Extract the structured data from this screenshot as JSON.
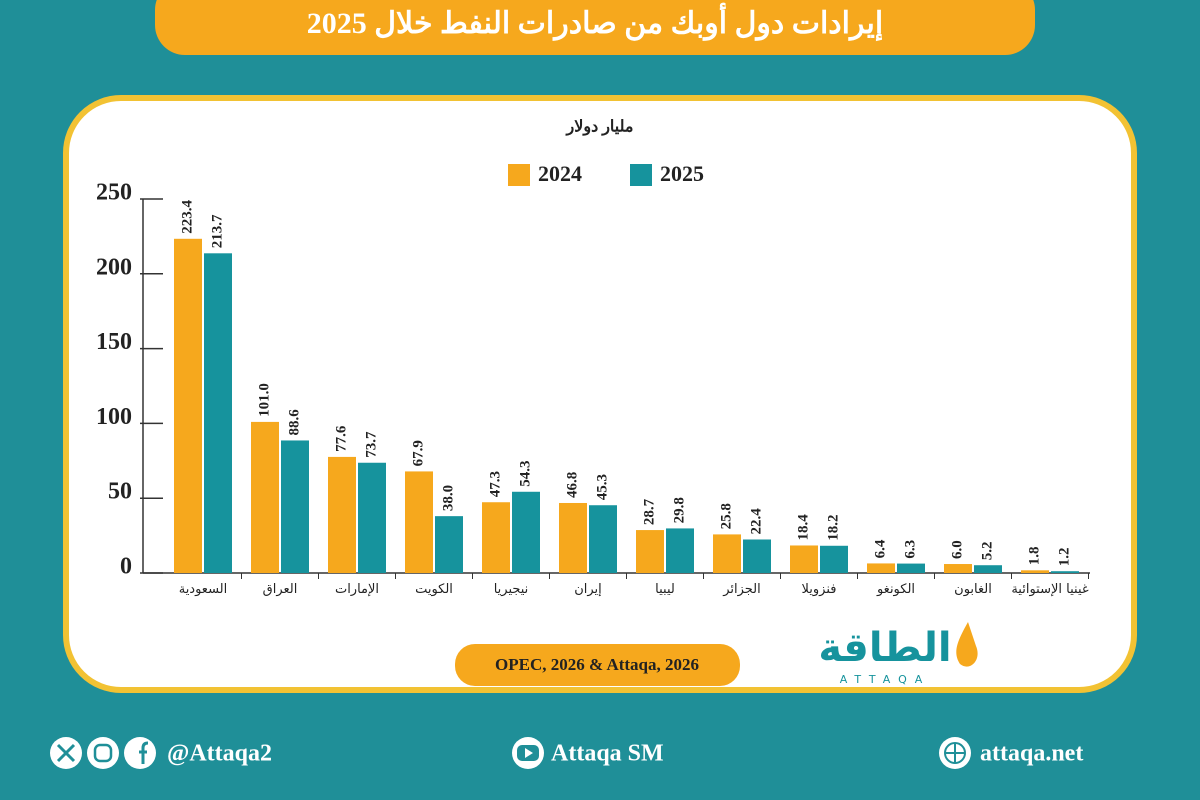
{
  "header": {
    "title": "إيرادات دول أوبك من صادرات النفط خلال 2025"
  },
  "chart_data": {
    "type": "bar",
    "unit_label": "مليار دولار",
    "categories": [
      "السعودية",
      "العراق",
      "الإمارات",
      "الكويت",
      "نيجيريا",
      "إيران",
      "ليبيا",
      "الجزائر",
      "فنزويلا",
      "الكونغو",
      "الغابون",
      "غينيا الإستوائية"
    ],
    "series": [
      {
        "name": "2024",
        "color": "#f6a81d",
        "values": [
          223.4,
          101.0,
          77.6,
          67.9,
          47.3,
          46.8,
          28.7,
          25.8,
          18.4,
          6.4,
          6.0,
          1.8
        ],
        "value_labels": [
          "223.4",
          "101.0",
          "77.6",
          "67.9",
          "47.3",
          "46.8",
          "28.7",
          "25.8",
          "18.4",
          "6.4",
          "6.0",
          "1.8"
        ]
      },
      {
        "name": "2025",
        "color": "#16939d",
        "values": [
          213.7,
          88.6,
          73.7,
          38.0,
          54.3,
          45.3,
          29.8,
          22.4,
          18.2,
          6.3,
          5.2,
          1.2
        ],
        "value_labels": [
          "213.7",
          "88.6",
          "73.7",
          "38.0",
          "54.3",
          "45.3",
          "29.8",
          "22.4",
          "18.2",
          "6.3",
          "5.2",
          "1.2"
        ]
      }
    ],
    "ylim": [
      0,
      250
    ],
    "yticks": [
      0,
      50,
      100,
      150,
      200,
      250
    ],
    "legend": "top",
    "source": "OPEC, 2026 & Attaqa, 2026"
  },
  "logo": {
    "name": "الطاقة",
    "latin": "ATTAQA"
  },
  "footer": {
    "social": "@Attaqa2",
    "youtube": "Attaqa SM",
    "website": "attaqa.net"
  }
}
